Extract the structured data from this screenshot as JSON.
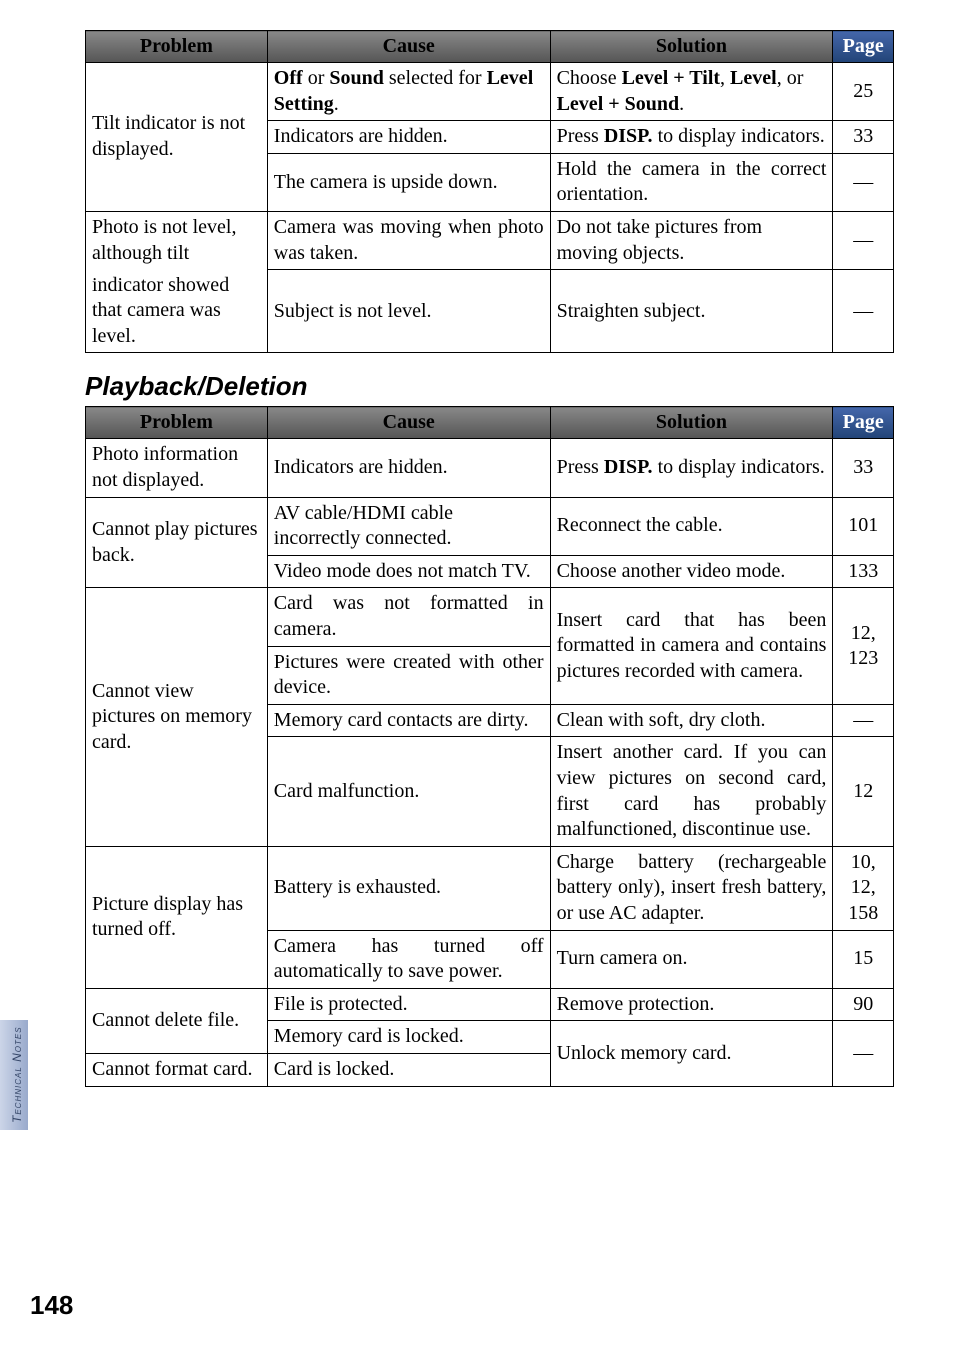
{
  "sideTab": "Technical Notes",
  "pageNumber": "148",
  "table1": {
    "headers": [
      "Problem",
      "Cause",
      "Solution",
      "Page"
    ],
    "rows": [
      {
        "problem": "Tilt indicator is not displayed.",
        "sub": [
          {
            "cause_pre": "Off",
            "cause_mid1": " or ",
            "cause_b2": "Sound",
            "cause_mid2": " selected for ",
            "cause_b3": "Level Setting",
            "cause_post": ".",
            "sol_pre": "Choose ",
            "sol_b1": "Level + Tilt",
            "sol_mid1": ", ",
            "sol_b2": "Level",
            "sol_mid2": ", or ",
            "sol_b3": "Level + Sound",
            "sol_post": ".",
            "page": "25"
          },
          {
            "cause": "Indicators are hidden.",
            "sol_pre": "Press ",
            "sol_b1": "DISP.",
            "sol_post": " to display indicators.",
            "page": "33"
          },
          {
            "cause": "The camera is upside down.",
            "solution": "Hold the camera in the correct orientation.",
            "page": "—"
          }
        ]
      },
      {
        "problem": "Photo is not level, although tilt indicator showed that camera was level.",
        "sub": [
          {
            "cause": "Camera was moving when photo was taken.",
            "solution": "Do not take pictures from moving objects.",
            "page": "—"
          },
          {
            "cause": "Subject is not level.",
            "solution": "Straighten subject.",
            "page": "—"
          }
        ]
      }
    ]
  },
  "heading2": "Playback/Deletion",
  "table2": {
    "headers": [
      "Problem",
      "Cause",
      "Solution",
      "Page"
    ],
    "rows": {
      "r1": {
        "problem": "Photo information not displayed.",
        "cause": "Indicators are hidden.",
        "sol_pre": "Press ",
        "sol_b1": "DISP.",
        "sol_post": " to display indicators.",
        "page": "33"
      },
      "r2": {
        "problem": "Cannot play pictures back.",
        "a": {
          "cause": "AV cable/HDMI cable incorrectly connected.",
          "solution": "Reconnect the cable.",
          "page": "101"
        },
        "b": {
          "cause": "Video mode does not match TV.",
          "solution": "Choose another video mode.",
          "page": "133"
        }
      },
      "r3": {
        "problem": "Cannot view pictures on memory card.",
        "a": {
          "cause1": "Card was not formatted in camera.",
          "cause2": "Pictures were created with other device.",
          "solution": "Insert card that has been formatted in camera and contains pictures recorded with camera.",
          "page": "12, 123"
        },
        "b": {
          "cause": "Memory card contacts are dirty.",
          "solution": "Clean with soft, dry cloth.",
          "page": "—"
        },
        "c": {
          "cause": "Card malfunction.",
          "solution": "Insert another card. If you can view pictures on second card, first card has probably malfunctioned, discontinue use.",
          "page": "12"
        }
      },
      "r4": {
        "problem": "Picture display has turned off.",
        "a": {
          "cause": "Battery is exhausted.",
          "solution": "Charge battery (rechargeable battery only), insert fresh battery, or use AC adapter.",
          "page": "10, 12, 158"
        },
        "b": {
          "cause": "Camera has turned off automatically to save power.",
          "solution": "Turn camera on.",
          "page": "15"
        }
      },
      "r5": {
        "problem": "Cannot delete file.",
        "a": {
          "cause": "File is protected.",
          "solution": "Remove protection.",
          "page": "90"
        },
        "b": {
          "cause": "Memory card is locked.",
          "solution_shared": "Unlock memory card.",
          "page_shared": "—"
        }
      },
      "r6": {
        "problem": "Cannot format card.",
        "cause": "Card is locked."
      }
    }
  }
}
